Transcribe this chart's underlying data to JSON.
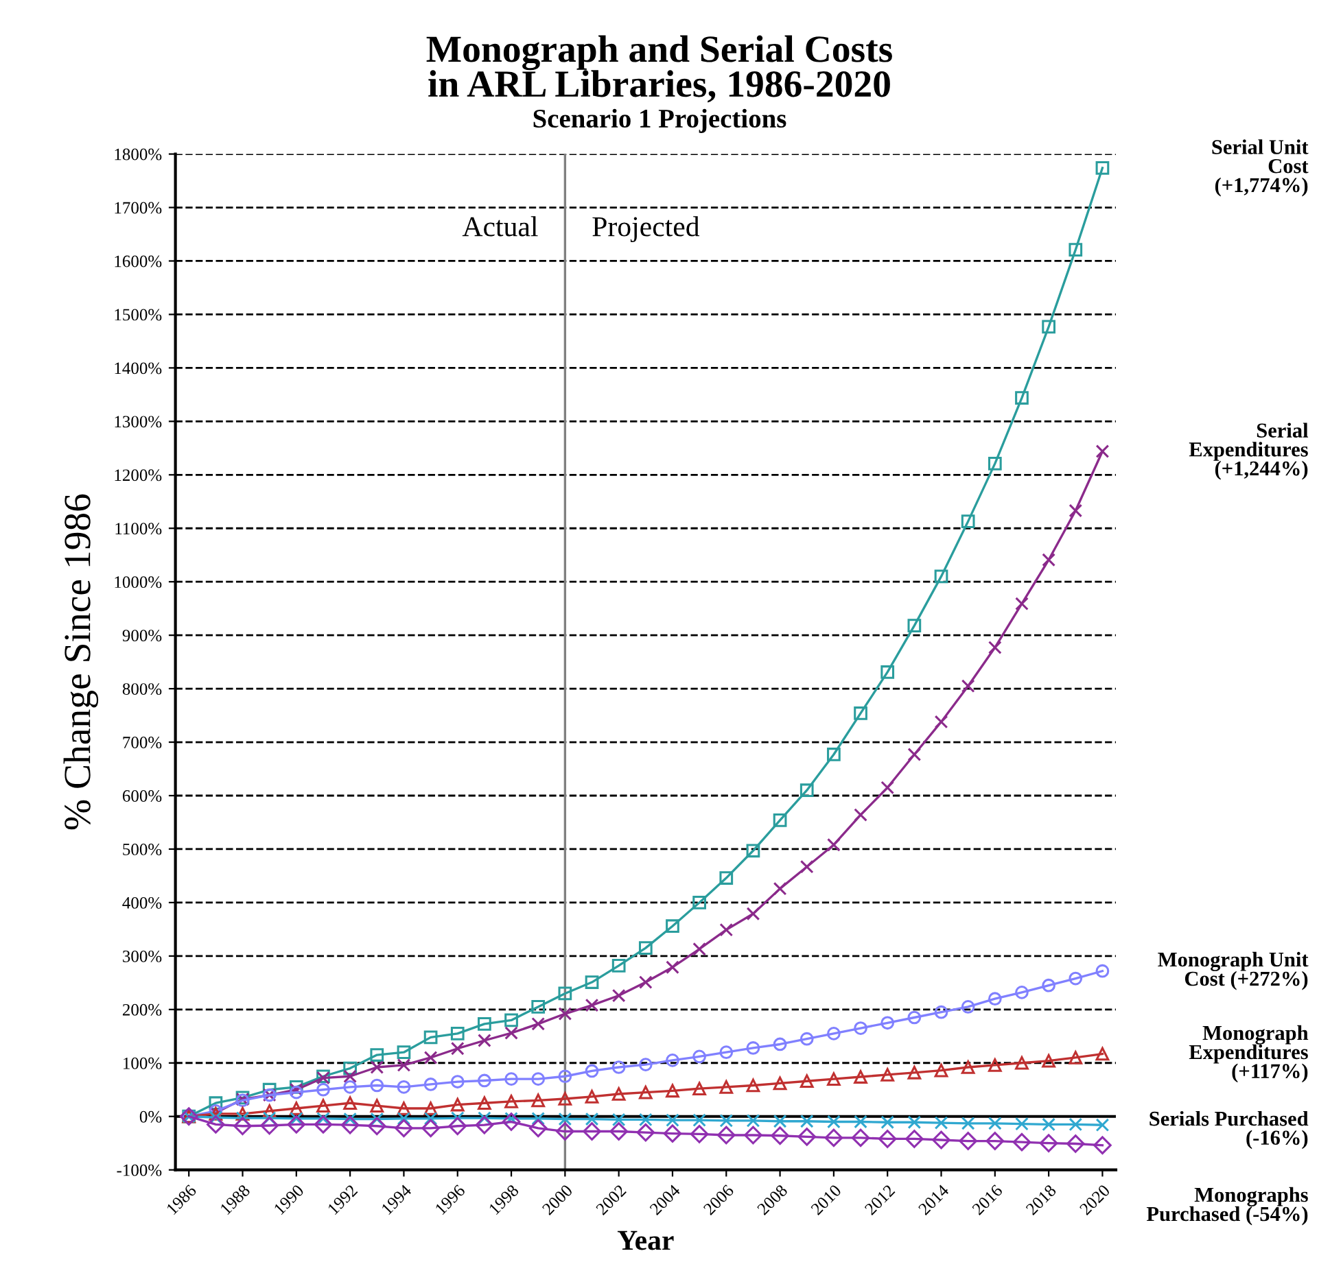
{
  "chart_data": {
    "type": "line",
    "title": "Monograph and Serial Costs\nin ARL Libraries, 1986-2020",
    "subtitle": "Scenario 1 Projections",
    "xlabel": "Year",
    "ylabel": "% Change Since 1986",
    "x": [
      1986,
      1987,
      1988,
      1989,
      1990,
      1991,
      1992,
      1993,
      1994,
      1995,
      1996,
      1997,
      1998,
      1999,
      2000,
      2001,
      2002,
      2003,
      2004,
      2005,
      2006,
      2007,
      2008,
      2009,
      2010,
      2011,
      2012,
      2013,
      2014,
      2015,
      2016,
      2017,
      2018,
      2019,
      2020
    ],
    "series": [
      {
        "name": "Serial Unit\nCost\n(+1,774%)",
        "color": "#2a9d9d",
        "marker": "square",
        "values": [
          0,
          25,
          35,
          50,
          55,
          75,
          90,
          115,
          120,
          148,
          155,
          173,
          180,
          205,
          230,
          251,
          282,
          315,
          356,
          400,
          446,
          497,
          554,
          610,
          677,
          754,
          831,
          918,
          1010,
          1113,
          1221,
          1344,
          1477,
          1621,
          1774
        ]
      },
      {
        "name": "Serial\nExpenditures\n(+1,244%)",
        "color": "#8b2a8b",
        "marker": "cross",
        "values": [
          0,
          7,
          32,
          40,
          50,
          72,
          75,
          92,
          96,
          110,
          127,
          142,
          156,
          173,
          192,
          208,
          226,
          251,
          279,
          313,
          349,
          379,
          426,
          467,
          508,
          564,
          615,
          677,
          738,
          805,
          877,
          959,
          1041,
          1133,
          1244
        ]
      },
      {
        "name": "Monograph Unit\nCost (+272%)",
        "color": "#8080ff",
        "marker": "circle",
        "values": [
          0,
          10,
          30,
          40,
          45,
          50,
          55,
          58,
          55,
          60,
          65,
          67,
          70,
          70,
          75,
          85,
          92,
          97,
          105,
          112,
          120,
          128,
          135,
          145,
          155,
          165,
          175,
          185,
          195,
          205,
          220,
          232,
          245,
          258,
          272
        ]
      },
      {
        "name": "Monograph\nExpenditures\n(+117%)",
        "color": "#c03030",
        "marker": "triangle",
        "values": [
          0,
          5,
          5,
          10,
          15,
          20,
          25,
          20,
          15,
          15,
          22,
          25,
          28,
          30,
          33,
          37,
          42,
          45,
          48,
          52,
          55,
          58,
          62,
          66,
          70,
          74,
          78,
          82,
          86,
          92,
          96,
          100,
          104,
          110,
          117
        ]
      },
      {
        "name": "Serials Purchased\n(-16%)",
        "color": "#30a8d0",
        "marker": "cross",
        "values": [
          0,
          -2,
          -3,
          -3,
          -4,
          -4,
          -5,
          -5,
          -4,
          -4,
          -3,
          -3,
          -4,
          -4,
          -5,
          -5,
          -6,
          -6,
          -7,
          -7,
          -8,
          -8,
          -9,
          -9,
          -10,
          -10,
          -11,
          -11,
          -12,
          -13,
          -13,
          -14,
          -15,
          -15,
          -16
        ]
      },
      {
        "name": "Monographs\nPurchased (-54%)",
        "color": "#9030b0",
        "marker": "diamond",
        "values": [
          0,
          -15,
          -18,
          -17,
          -15,
          -15,
          -16,
          -18,
          -22,
          -22,
          -18,
          -16,
          -10,
          -22,
          -28,
          -28,
          -28,
          -30,
          -32,
          -33,
          -35,
          -35,
          -36,
          -38,
          -40,
          -40,
          -42,
          -42,
          -44,
          -46,
          -46,
          -48,
          -50,
          -51,
          -54
        ]
      }
    ],
    "xlim": [
      1985.5,
      2020.5
    ],
    "xticks": [
      1986,
      1988,
      1990,
      1992,
      1994,
      1996,
      1998,
      2000,
      2002,
      2004,
      2006,
      2008,
      2010,
      2012,
      2014,
      2016,
      2018,
      2020
    ],
    "ylim": [
      -100,
      1800
    ],
    "yticks": [
      {
        "value": -100,
        "label": "-100%"
      },
      {
        "value": 0,
        "label": "0%"
      },
      {
        "value": 100,
        "label": "100%"
      },
      {
        "value": 200,
        "label": "200%"
      },
      {
        "value": 300,
        "label": "300%"
      },
      {
        "value": 400,
        "label": "400%"
      },
      {
        "value": 500,
        "label": "500%"
      },
      {
        "value": 600,
        "label": "600%"
      },
      {
        "value": 700,
        "label": "700%"
      },
      {
        "value": 800,
        "label": "800%"
      },
      {
        "value": 900,
        "label": "900%"
      },
      {
        "value": 1000,
        "label": "1000%"
      },
      {
        "value": 1100,
        "label": "1100%"
      },
      {
        "value": 1200,
        "label": "1200%"
      },
      {
        "value": 1300,
        "label": "1300%"
      },
      {
        "value": 1400,
        "label": "1400%"
      },
      {
        "value": 1500,
        "label": "1500%"
      },
      {
        "value": 1600,
        "label": "1600%"
      },
      {
        "value": 1700,
        "label": "1700%"
      },
      {
        "value": 1800,
        "label": "1800%"
      }
    ],
    "ref_lines": [
      {
        "axis": "x",
        "value": 2000,
        "color": "#808080"
      },
      {
        "axis": "y",
        "value": 0,
        "color": "#000000"
      }
    ],
    "annotations": [
      "Actual",
      "Projected"
    ],
    "grid": "y",
    "line_style": "solid",
    "legend": false
  }
}
